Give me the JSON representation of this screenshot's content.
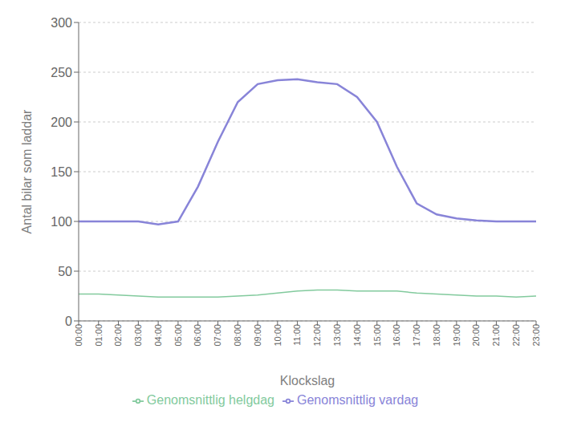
{
  "chart_data": {
    "type": "line",
    "xlabel": "Klockslag",
    "ylabel": "Antal bilar som laddar",
    "categories": [
      "00:00",
      "01:00",
      "02:00",
      "03:00",
      "04:00",
      "05:00",
      "06:00",
      "07:00",
      "08:00",
      "09:00",
      "10:00",
      "11:00",
      "12:00",
      "13:00",
      "14:00",
      "15:00",
      "16:00",
      "17:00",
      "18:00",
      "19:00",
      "20:00",
      "21:00",
      "22:00",
      "23:00"
    ],
    "series": [
      {
        "name": "Genomsnittlig vardag",
        "color": "#8884d8",
        "values": [
          100,
          100,
          100,
          100,
          97,
          100,
          135,
          180,
          220,
          238,
          242,
          243,
          240,
          238,
          225,
          200,
          155,
          118,
          107,
          103,
          101,
          100,
          100,
          100
        ]
      },
      {
        "name": "Genomsnittlig helgdag",
        "color": "#82ca9d",
        "values": [
          27,
          27,
          26,
          25,
          24,
          24,
          24,
          24,
          25,
          26,
          28,
          30,
          31,
          31,
          30,
          30,
          30,
          28,
          27,
          26,
          25,
          25,
          24,
          25
        ]
      }
    ],
    "ylim": [
      0,
      300
    ],
    "yticks": [
      0,
      50,
      100,
      150,
      200,
      250,
      300
    ],
    "grid": true,
    "legend": "bottom"
  }
}
